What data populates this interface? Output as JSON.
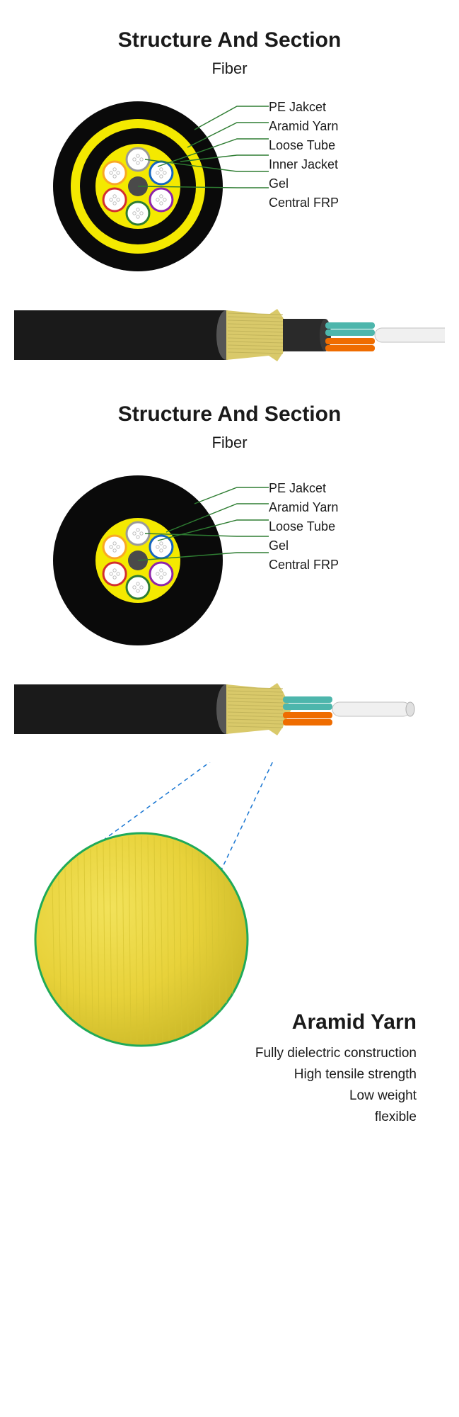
{
  "section1": {
    "title": "Structure And Section",
    "subtitle": "Fiber",
    "labels": [
      "PE Jakcet",
      "Aramid Yarn",
      "Loose Tube",
      "Inner Jacket",
      "Gel",
      "Central FRP"
    ],
    "rings": [
      {
        "r": 120,
        "fill": "#0a0a0a"
      },
      {
        "r": 95,
        "fill": "#f4e900"
      },
      {
        "r": 82,
        "fill": "#0a0a0a"
      },
      {
        "r": 60,
        "fill": "#f4e900"
      }
    ],
    "center_tube": {
      "r": 14,
      "fill": "#4a4a4a"
    },
    "loose_tubes": [
      {
        "angle": 0,
        "stroke": "#9a9a9a"
      },
      {
        "angle": 60,
        "stroke": "#1565c0"
      },
      {
        "angle": 120,
        "stroke": "#8e24aa"
      },
      {
        "angle": 180,
        "stroke": "#2e7d32"
      },
      {
        "angle": 240,
        "stroke": "#d32f2f"
      },
      {
        "angle": 300,
        "stroke": "#f9a825"
      }
    ],
    "loose_tube_radius": 16,
    "loose_tube_orbit": 38,
    "pointer_color": "#2e7d32",
    "title_fontsize": 30,
    "subtitle_fontsize": 22,
    "label_fontsize": 18
  },
  "section2": {
    "title": "Structure And Section",
    "subtitle": "Fiber",
    "labels": [
      "PE Jakcet",
      "Aramid Yarn",
      "Loose Tube",
      "Gel",
      "Central FRP"
    ],
    "rings": [
      {
        "r": 120,
        "fill": "#0a0a0a"
      },
      {
        "r": 60,
        "fill": "#f4e900"
      }
    ],
    "center_tube": {
      "r": 14,
      "fill": "#4a4a4a"
    },
    "loose_tubes": [
      {
        "angle": 0,
        "stroke": "#9a9a9a"
      },
      {
        "angle": 60,
        "stroke": "#1565c0"
      },
      {
        "angle": 120,
        "stroke": "#8e24aa"
      },
      {
        "angle": 180,
        "stroke": "#2e7d32"
      },
      {
        "angle": 240,
        "stroke": "#d32f2f"
      },
      {
        "angle": 300,
        "stroke": "#f9a825"
      }
    ],
    "loose_tube_radius": 16,
    "loose_tube_orbit": 38,
    "pointer_color": "#2e7d32",
    "title_fontsize": 30,
    "subtitle_fontsize": 22,
    "label_fontsize": 18
  },
  "side_cable": {
    "jacket_color": "#1a1a1a",
    "jacket_highlight": "#555555",
    "yarn_color": "#d9c96a",
    "inner_jacket_color": "#2a2a2a",
    "core_white": "#f0f0f0",
    "tube_colors": [
      "#4db6ac",
      "#4db6ac",
      "#ef6c00",
      "#ef6c00"
    ],
    "end_cap_color": "#e0e0e0"
  },
  "aramid_detail": {
    "title": "Aramid Yarn",
    "title_fontsize": 30,
    "features": [
      "Fully dielectric construction",
      "High tensile strength",
      "Low weight",
      "flexible"
    ],
    "feature_fontsize": 19,
    "circle_fill": "#e8d23a",
    "circle_stroke": "#1faa59",
    "circle_stroke_width": 3,
    "zoom_line_color": "#1976d2",
    "zoom_line_dash": "6 5"
  }
}
